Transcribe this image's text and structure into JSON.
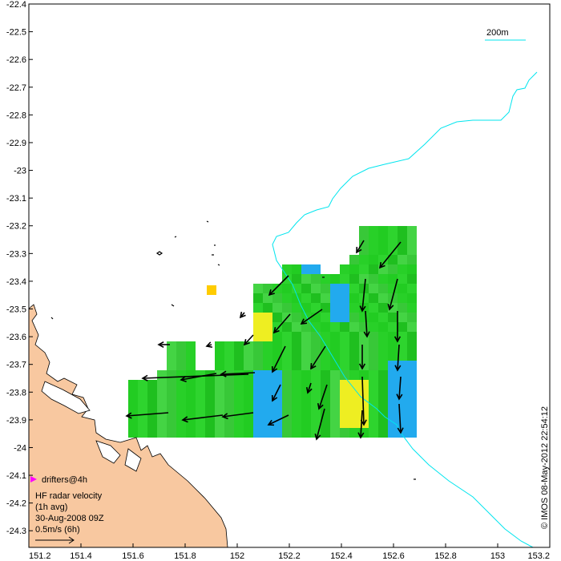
{
  "map": {
    "x_ticks": [
      "151.2",
      "151.4",
      "151.6",
      "151.8",
      "152",
      "152.2",
      "152.4",
      "152.6",
      "152.8",
      "153",
      "153.2"
    ],
    "y_ticks": [
      "-22.4",
      "-22.5",
      "-22.6",
      "-22.7",
      "-22.8",
      "-22.9",
      "-23",
      "-23.1",
      "-23.2",
      "-23.3",
      "-23.4",
      "-23.5",
      "-23.6",
      "-23.7",
      "-23.8",
      "-23.9",
      "-24",
      "-24.1",
      "-24.2",
      "-24.3"
    ],
    "x_range": [
      151.2,
      153.2
    ],
    "y_range": [
      -24.36,
      -22.4
    ],
    "scale_bar": {
      "label": "200m",
      "color": "#00e5ee"
    },
    "legend": {
      "drifter_label": "drifters@4h",
      "drifter_color": "#ff00ff",
      "title_line1": "HF radar velocity",
      "title_line2": "(1h avg)",
      "date": "30-Aug-2008 09Z",
      "ref_label": "0.5m/s (6h)"
    },
    "credit": "© IMOS 08-May-2012 22:54:12",
    "colors": {
      "land": "#f8c8a0",
      "isobath": "#00e5ee",
      "field_green": "#22cc22",
      "field_cyan": "#22aaee",
      "field_yellow": "#eeee22",
      "arrow": "#000000"
    }
  }
}
